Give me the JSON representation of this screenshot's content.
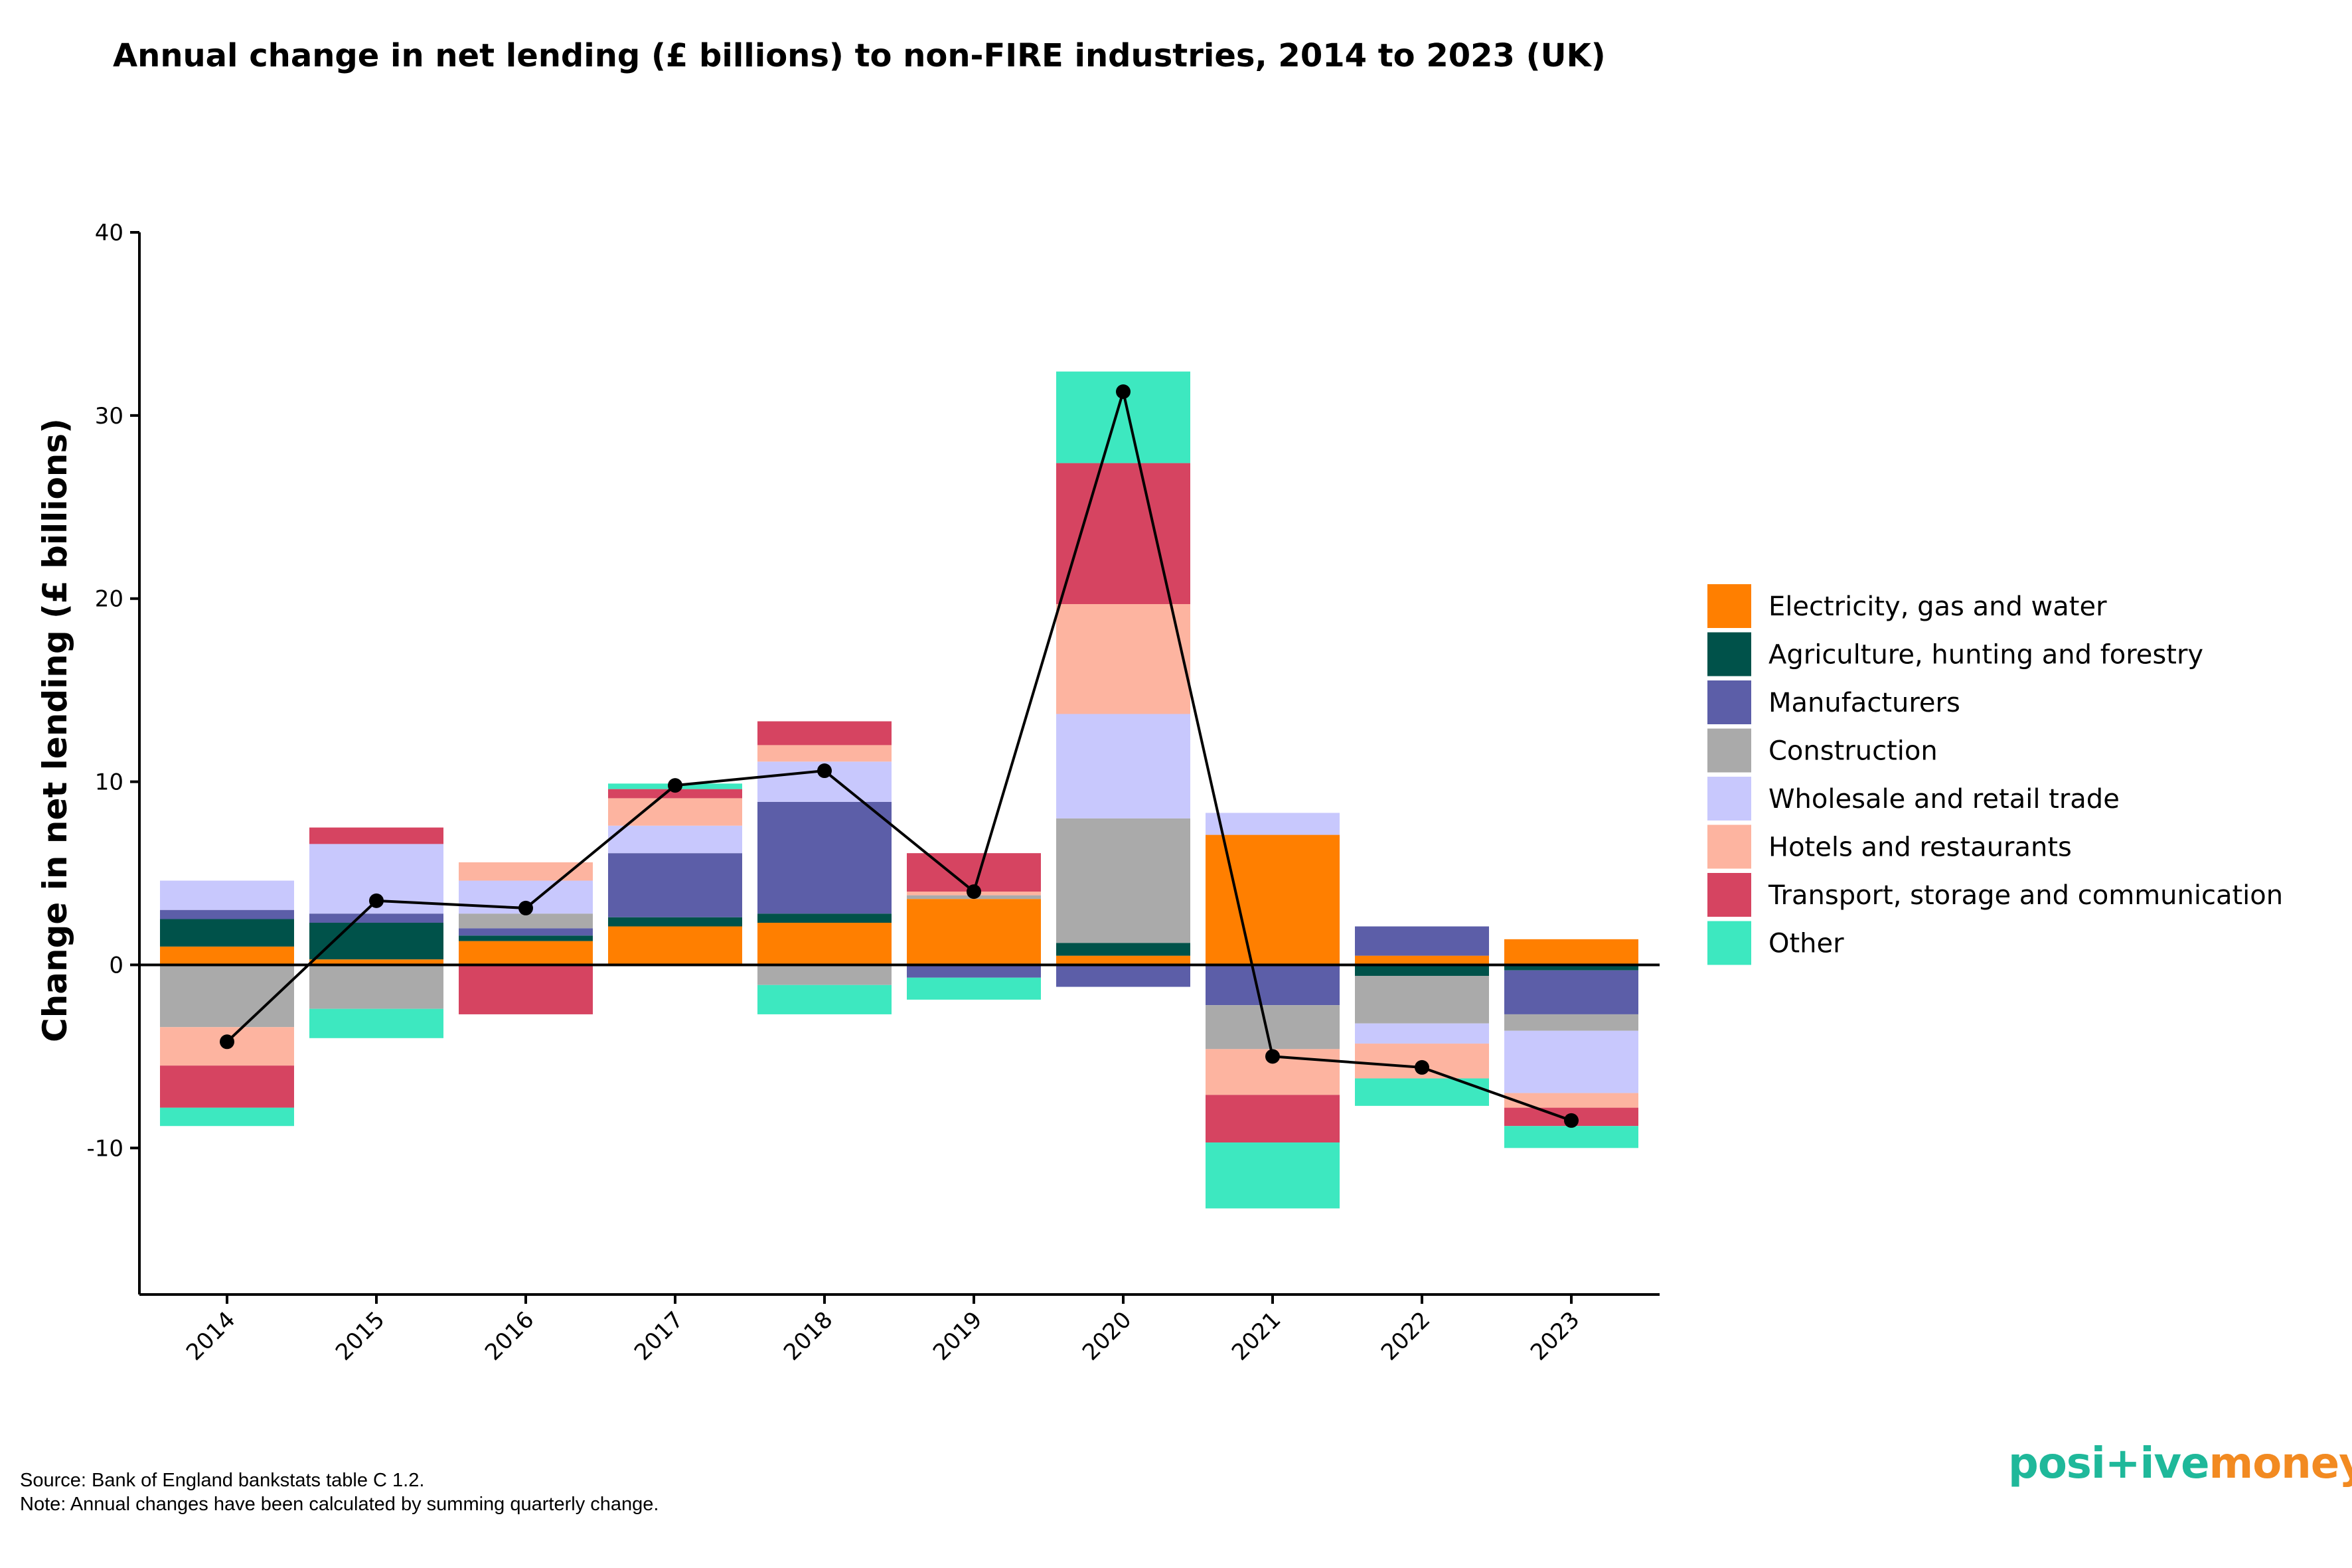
{
  "chart_data": {
    "type": "bar",
    "stacked": true,
    "title": "Annual change in net lending (£ billions) to non-FIRE industries, 2014 to 2023 (UK)",
    "xlabel": "",
    "ylabel": "Change in net lending (£ billions)",
    "ylim": [
      -18,
      40
    ],
    "yticks": [
      -10,
      0,
      10,
      20,
      30,
      40
    ],
    "grid": false,
    "legend_position": "right",
    "categories": [
      "2014",
      "2015",
      "2016",
      "2017",
      "2018",
      "2019",
      "2020",
      "2021",
      "2022",
      "2023"
    ],
    "series": [
      {
        "name": "Electricity, gas and water",
        "color": "#ff7f00",
        "values": [
          1.0,
          0.3,
          1.3,
          2.1,
          2.3,
          3.6,
          0.5,
          7.1,
          0.5,
          1.4
        ]
      },
      {
        "name": "Agriculture, hunting and forestry",
        "color": "#00524a",
        "values": [
          1.5,
          2.0,
          0.3,
          0.5,
          0.5,
          0.0,
          0.7,
          0.0,
          -0.6,
          -0.3
        ]
      },
      {
        "name": "Manufacturers",
        "color": "#5c5ea8",
        "values": [
          0.5,
          0.5,
          0.4,
          3.5,
          6.1,
          -0.7,
          -1.2,
          -2.2,
          1.6,
          -2.4
        ]
      },
      {
        "name": "Construction",
        "color": "#aaaaaa",
        "values": [
          -3.4,
          -2.4,
          0.8,
          0.0,
          -1.1,
          0.2,
          6.8,
          -2.4,
          -2.6,
          -0.9
        ]
      },
      {
        "name": "Wholesale and retail trade",
        "color": "#c8c8fd",
        "values": [
          1.6,
          3.8,
          1.8,
          1.5,
          2.2,
          0.0,
          5.7,
          1.2,
          -1.1,
          -3.4
        ]
      },
      {
        "name": "Hotels and restaurants",
        "color": "#fdb4a0",
        "values": [
          -2.1,
          0.0,
          1.0,
          1.5,
          0.9,
          0.2,
          6.0,
          -2.5,
          -1.9,
          -0.8
        ]
      },
      {
        "name": "Transport, storage and communication",
        "color": "#d64461",
        "values": [
          -2.3,
          0.9,
          -2.7,
          0.5,
          1.3,
          2.1,
          7.7,
          -2.6,
          0.0,
          -1.0
        ]
      },
      {
        "name": "Other",
        "color": "#3de8c0",
        "values": [
          -1.0,
          -1.6,
          0.0,
          0.3,
          -1.6,
          -1.2,
          5.0,
          -3.6,
          -1.5,
          -1.2
        ]
      }
    ],
    "total_line": {
      "name": "Total",
      "color": "#000000",
      "values": [
        -4.2,
        3.5,
        3.1,
        9.8,
        10.6,
        4.0,
        31.3,
        -5.0,
        -5.6,
        -8.5
      ]
    }
  },
  "footer": {
    "source": "Source: Bank of England bankstats table C 1.2.",
    "note": "Note: Annual changes have been calculated by summing quarterly change."
  },
  "logo": {
    "part1": "posi+ive",
    "part2": "money",
    "color1": "#1fb89a",
    "color2": "#f28a21"
  }
}
